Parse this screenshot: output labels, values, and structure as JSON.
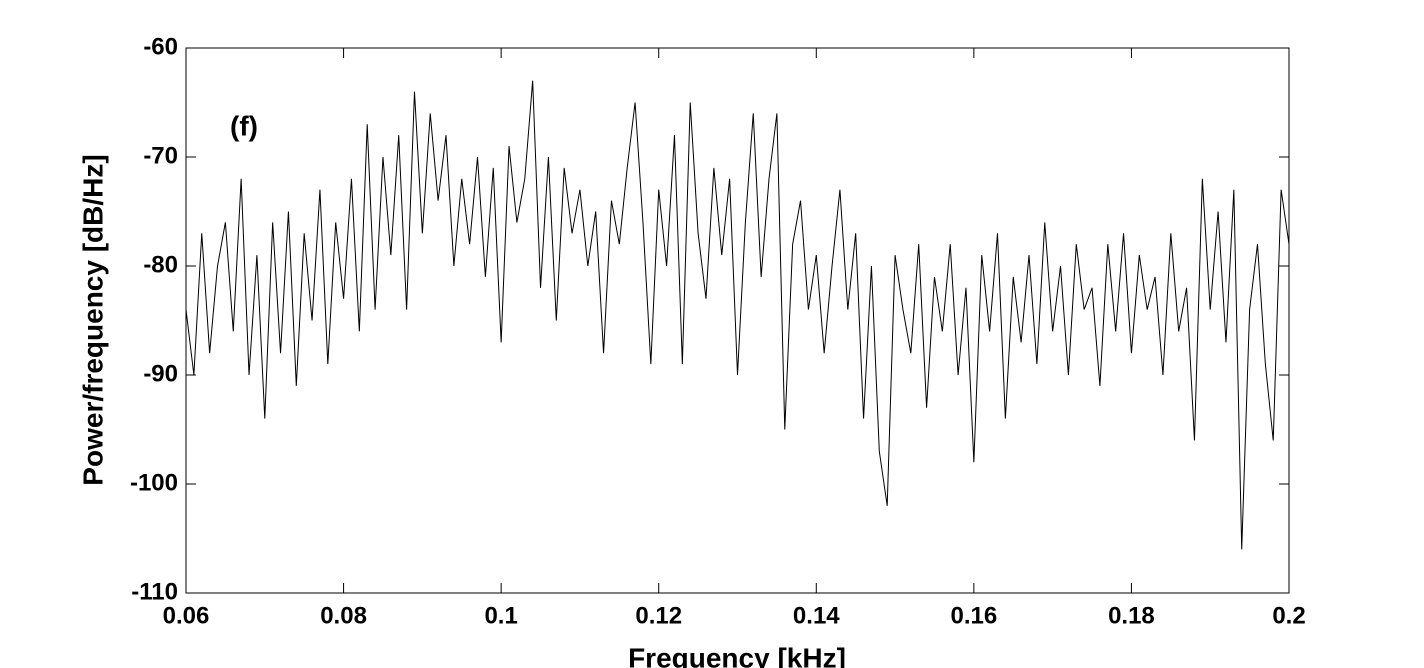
{
  "chart_data": {
    "type": "line",
    "annotation": "(f)",
    "xlabel": "Frequency [kHz]",
    "ylabel": "Power/frequency [dB/Hz]",
    "xlim": [
      0.06,
      0.2
    ],
    "ylim": [
      -110,
      -60
    ],
    "xticks": [
      0.06,
      0.08,
      0.1,
      0.12,
      0.14,
      0.16,
      0.18,
      0.2
    ],
    "yticks": [
      -110,
      -100,
      -90,
      -80,
      -70,
      -60
    ],
    "grid": false,
    "series": [
      {
        "color": "#000000",
        "x": [
          0.06,
          0.061,
          0.062,
          0.063,
          0.064,
          0.065,
          0.066,
          0.067,
          0.068,
          0.069,
          0.07,
          0.071,
          0.072,
          0.073,
          0.074,
          0.075,
          0.076,
          0.077,
          0.078,
          0.079,
          0.08,
          0.081,
          0.082,
          0.083,
          0.084,
          0.085,
          0.086,
          0.087,
          0.088,
          0.089,
          0.09,
          0.091,
          0.092,
          0.093,
          0.094,
          0.095,
          0.096,
          0.097,
          0.098,
          0.099,
          0.1,
          0.101,
          0.102,
          0.103,
          0.104,
          0.105,
          0.106,
          0.107,
          0.108,
          0.109,
          0.11,
          0.111,
          0.112,
          0.113,
          0.114,
          0.115,
          0.116,
          0.117,
          0.118,
          0.119,
          0.12,
          0.121,
          0.122,
          0.123,
          0.124,
          0.125,
          0.126,
          0.127,
          0.128,
          0.129,
          0.13,
          0.131,
          0.132,
          0.133,
          0.134,
          0.135,
          0.136,
          0.137,
          0.138,
          0.139,
          0.14,
          0.141,
          0.142,
          0.143,
          0.144,
          0.145,
          0.146,
          0.147,
          0.148,
          0.149,
          0.15,
          0.151,
          0.152,
          0.153,
          0.154,
          0.155,
          0.156,
          0.157,
          0.158,
          0.159,
          0.16,
          0.161,
          0.162,
          0.163,
          0.164,
          0.165,
          0.166,
          0.167,
          0.168,
          0.169,
          0.17,
          0.171,
          0.172,
          0.173,
          0.174,
          0.175,
          0.176,
          0.177,
          0.178,
          0.179,
          0.18,
          0.181,
          0.182,
          0.183,
          0.184,
          0.185,
          0.186,
          0.187,
          0.188,
          0.189,
          0.19,
          0.191,
          0.192,
          0.193,
          0.194,
          0.195,
          0.196,
          0.197,
          0.198,
          0.199,
          0.2
        ],
        "values": [
          -84,
          -90,
          -77,
          -88,
          -80,
          -76,
          -86,
          -72,
          -90,
          -79,
          -94,
          -76,
          -88,
          -75,
          -91,
          -77,
          -85,
          -73,
          -89,
          -76,
          -83,
          -72,
          -86,
          -67,
          -84,
          -70,
          -79,
          -68,
          -84,
          -64,
          -77,
          -66,
          -74,
          -68,
          -80,
          -72,
          -78,
          -70,
          -81,
          -71,
          -87,
          -69,
          -76,
          -72,
          -63,
          -82,
          -70,
          -85,
          -71,
          -77,
          -73,
          -80,
          -75,
          -88,
          -74,
          -78,
          -71,
          -65,
          -76,
          -89,
          -73,
          -80,
          -68,
          -89,
          -65,
          -77,
          -83,
          -71,
          -79,
          -72,
          -90,
          -76,
          -66,
          -81,
          -72,
          -66,
          -95,
          -78,
          -74,
          -84,
          -79,
          -88,
          -80,
          -73,
          -84,
          -77,
          -94,
          -80,
          -97,
          -102,
          -79,
          -84,
          -88,
          -78,
          -93,
          -81,
          -86,
          -78,
          -90,
          -82,
          -98,
          -79,
          -86,
          -77,
          -94,
          -81,
          -87,
          -79,
          -89,
          -76,
          -86,
          -80,
          -90,
          -78,
          -84,
          -82,
          -91,
          -78,
          -86,
          -77,
          -88,
          -79,
          -84,
          -81,
          -90,
          -77,
          -86,
          -82,
          -96,
          -72,
          -84,
          -75,
          -87,
          -73,
          -106,
          -84,
          -78,
          -89,
          -96,
          -73,
          -78
        ]
      }
    ]
  }
}
